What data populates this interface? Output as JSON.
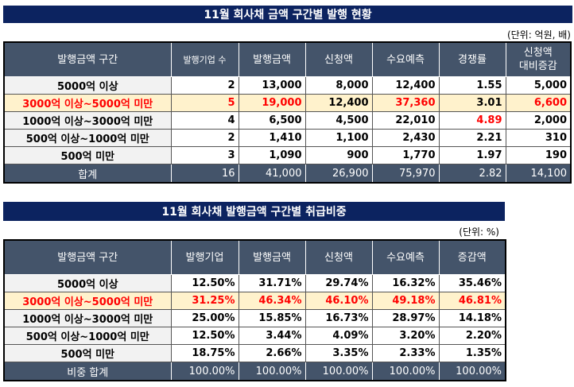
{
  "colors": {
    "title_bg": "#0c2360",
    "header_bg": "#44546a",
    "highlight_bg": "#fff2cc",
    "red": "#ff0000"
  },
  "table1": {
    "title": "11월 회사채 금액 구간별 발행 현황",
    "unit": "(단위: 억원, 배)",
    "headers": [
      "발행금액 구간",
      "발행기업 수",
      "발행금액",
      "신청액",
      "수요예측",
      "경쟁률",
      "신청액\n대비증감"
    ],
    "rows": [
      [
        "5000억 이상",
        "2",
        "13,000",
        "8,000",
        "12,400",
        "1.55",
        "5,000"
      ],
      [
        "3000억 이상~5000억 미만",
        "5",
        "19,000",
        "12,400",
        "37,360",
        "3.01",
        "6,600"
      ],
      [
        "1000억 이상~3000억 미만",
        "4",
        "6,500",
        "4,500",
        "22,010",
        "4.89",
        "2,000"
      ],
      [
        "500억 이상~1000억 미만",
        "2",
        "1,410",
        "1,100",
        "2,430",
        "2.21",
        "310"
      ],
      [
        "500억 미만",
        "3",
        "1,090",
        "900",
        "1,770",
        "1.97",
        "190"
      ]
    ],
    "total": [
      "합계",
      "16",
      "41,000",
      "26,900",
      "75,970",
      "2.82",
      "14,100"
    ]
  },
  "table2": {
    "title": "11월 회사채 발행금액 구간별 취급비중",
    "unit": "(단위: %)",
    "headers": [
      "발행금액 구간",
      "발행기업",
      "발행금액",
      "신청액",
      "수요예측",
      "증감액"
    ],
    "rows": [
      [
        "5000억 이상",
        "12.50%",
        "31.71%",
        "29.74%",
        "16.32%",
        "35.46%"
      ],
      [
        "3000억 이상~5000억 미만",
        "31.25%",
        "46.34%",
        "46.10%",
        "49.18%",
        "46.81%"
      ],
      [
        "1000억 이상~3000억 미만",
        "25.00%",
        "15.85%",
        "16.73%",
        "28.97%",
        "14.18%"
      ],
      [
        "500억 이상~1000억 미만",
        "12.50%",
        "3.44%",
        "4.09%",
        "3.20%",
        "2.20%"
      ],
      [
        "500억 미만",
        "18.75%",
        "2.66%",
        "3.35%",
        "2.33%",
        "1.35%"
      ]
    ],
    "total": [
      "비중 합계",
      "100.00%",
      "100.00%",
      "100.00%",
      "100.00%",
      "100.00%"
    ]
  }
}
